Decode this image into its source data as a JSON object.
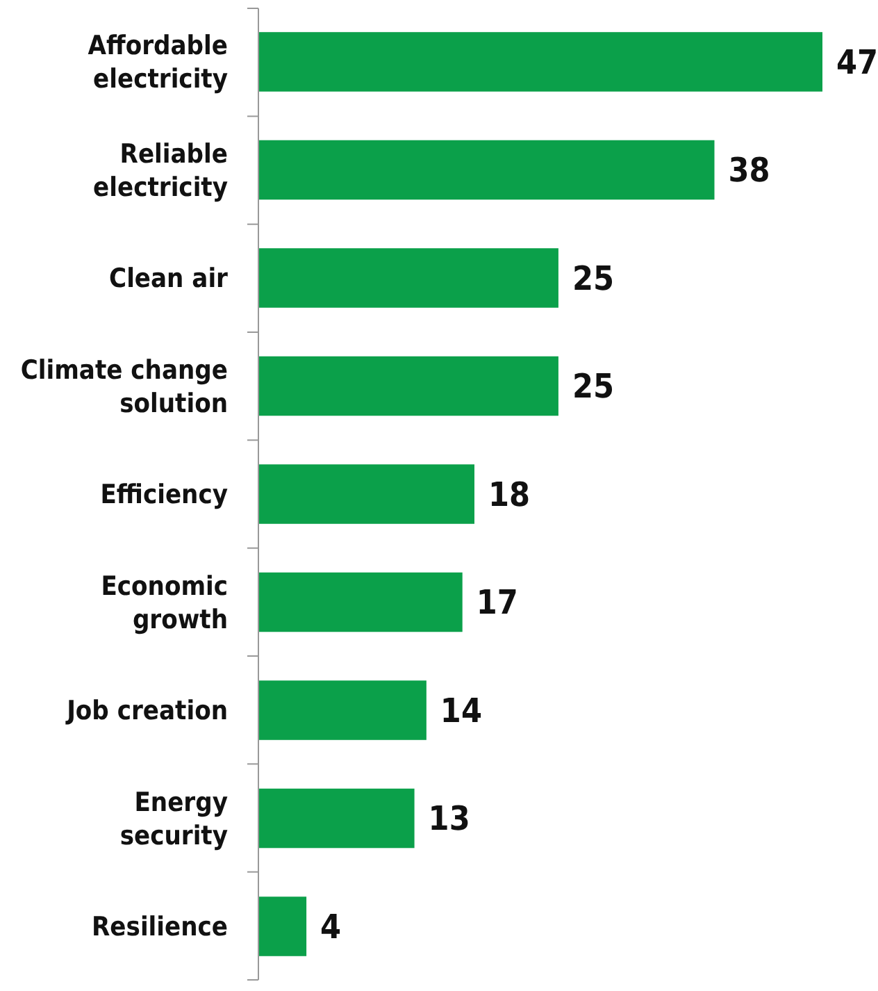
{
  "chart_data": {
    "type": "bar",
    "orientation": "horizontal",
    "data_labels": true,
    "color": "#0ba04a",
    "categories": [
      "Affordable electricity",
      "Reliable electricity",
      "Clean air",
      "Climate change solution",
      "Efficiency",
      "Economic growth",
      "Job creation",
      "Energy security",
      "Resilience"
    ],
    "values": [
      47,
      38,
      25,
      25,
      18,
      17,
      14,
      13,
      4
    ]
  }
}
